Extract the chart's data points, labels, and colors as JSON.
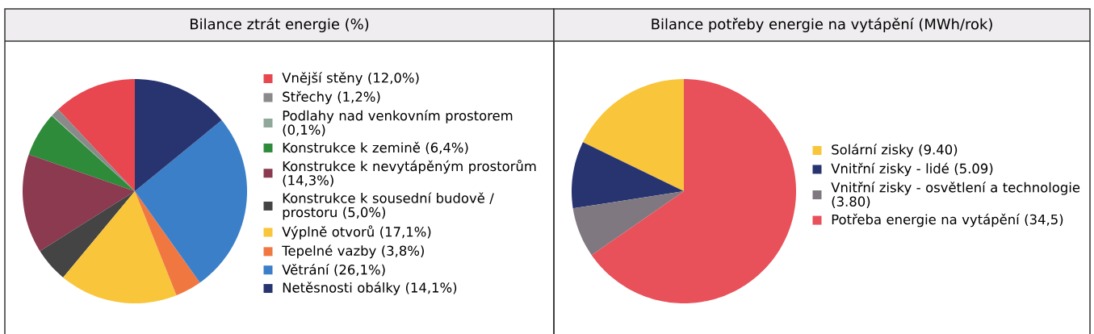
{
  "chart_data": [
    {
      "type": "pie",
      "title": "Bilance ztrát energie (%)",
      "legend": "right",
      "categories": [
        "Vnější stěny (12,0%)",
        "Střechy (1,2%)",
        "Podlahy nad venkovním prostorem (0,1%)",
        "Konstrukce k zemině (6,4%)",
        "Konstrukce k nevytápěným prostorům (14,3%)",
        "Konstrukce k sousední budově / prostoru (5,0%)",
        "Výplně otvorů (17,1%)",
        "Tepelné vazby (3,8%)",
        "Větrání (26,1%)",
        "Netěsnosti obálky (14,1%)"
      ],
      "values": [
        12.0,
        1.2,
        0.1,
        6.4,
        14.3,
        5.0,
        17.1,
        3.8,
        26.1,
        14.1
      ],
      "colors": [
        "#e8474f",
        "#8a8a8a",
        "#8fa89a",
        "#2e8b3a",
        "#8b3a50",
        "#444444",
        "#f9c53a",
        "#f07840",
        "#3a7fc8",
        "#283470"
      ]
    },
    {
      "type": "pie",
      "title": "Bilance potřeby energie na vytápění (MWh/rok)",
      "legend": "right",
      "categories": [
        "Solární zisky (9.40)",
        "Vnitřní zisky - lidé (5.09)",
        "Vnitřní zisky - osvětlení a technologie (3.80)",
        "Potřeba energie na vytápění (34,5)"
      ],
      "values": [
        9.4,
        5.09,
        3.8,
        34.5
      ],
      "colors": [
        "#f9c53a",
        "#283470",
        "#807880",
        "#e8505a"
      ]
    }
  ]
}
